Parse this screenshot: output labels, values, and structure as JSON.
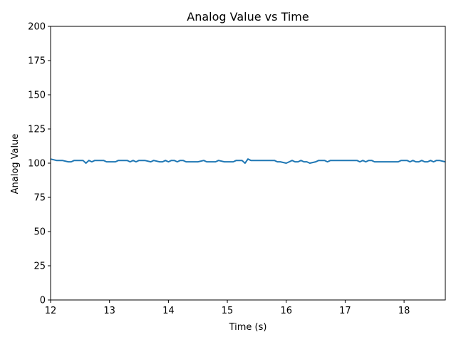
{
  "chart_data": {
    "type": "line",
    "title": "Analog Value vs Time",
    "xlabel": "Time (s)",
    "ylabel": "Analog Value",
    "xlim": [
      12,
      18.7
    ],
    "ylim": [
      0,
      200
    ],
    "grid": false,
    "x_ticks": [
      12,
      13,
      14,
      15,
      16,
      17,
      18
    ],
    "y_ticks": [
      0,
      25,
      50,
      75,
      100,
      125,
      150,
      175,
      200
    ],
    "line_color": "#1f77b4",
    "series": [
      {
        "x": [
          12.0,
          12.1,
          12.2,
          12.3,
          12.35,
          12.4,
          12.5,
          12.55,
          12.6,
          12.65,
          12.7,
          12.75,
          12.8,
          12.9,
          12.95,
          13.0,
          13.1,
          13.15,
          13.2,
          13.3,
          13.35,
          13.4,
          13.45,
          13.5,
          13.55,
          13.6,
          13.7,
          13.75,
          13.85,
          13.9,
          13.95,
          14.0,
          14.05,
          14.1,
          14.15,
          14.2,
          14.25,
          14.3,
          14.35,
          14.4,
          14.5,
          14.6,
          14.65,
          14.7,
          14.8,
          14.85,
          14.95,
          15.0,
          15.1,
          15.15,
          15.25,
          15.3,
          15.35,
          15.4,
          15.45,
          15.5,
          15.6,
          15.7,
          15.8,
          15.85,
          15.9,
          16.0,
          16.05,
          16.1,
          16.15,
          16.2,
          16.25,
          16.3,
          16.35,
          16.4,
          16.5,
          16.55,
          16.6,
          16.65,
          16.7,
          16.75,
          16.8,
          16.85,
          16.9,
          17.0,
          17.1,
          17.2,
          17.25,
          17.3,
          17.35,
          17.4,
          17.45,
          17.5,
          17.55,
          17.6,
          17.7,
          17.8,
          17.9,
          17.95,
          18.0,
          18.05,
          18.1,
          18.15,
          18.2,
          18.25,
          18.3,
          18.35,
          18.4,
          18.45,
          18.5,
          18.55,
          18.6,
          18.7
        ],
        "y": [
          103,
          102,
          102,
          101,
          101,
          102,
          102,
          102,
          100,
          102,
          101,
          102,
          102,
          102,
          101,
          101,
          101,
          102,
          102,
          102,
          101,
          102,
          101,
          102,
          102,
          102,
          101,
          102,
          101,
          101,
          102,
          101,
          102,
          102,
          101,
          102,
          102,
          101,
          101,
          101,
          101,
          102,
          101,
          101,
          101,
          102,
          101,
          101,
          101,
          102,
          102,
          100,
          103,
          102,
          102,
          102,
          102,
          102,
          102,
          101,
          101,
          100,
          101,
          102,
          101,
          101,
          102,
          101,
          101,
          100,
          101,
          102,
          102,
          102,
          101,
          102,
          102,
          102,
          102,
          102,
          102,
          102,
          101,
          102,
          101,
          102,
          102,
          101,
          101,
          101,
          101,
          101,
          101,
          102,
          102,
          102,
          101,
          102,
          101,
          101,
          102,
          101,
          101,
          102,
          101,
          102,
          102,
          101
        ]
      }
    ]
  }
}
